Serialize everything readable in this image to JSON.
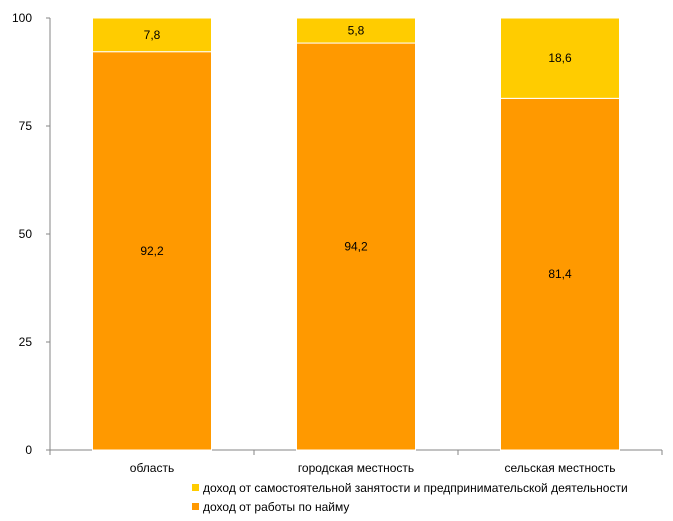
{
  "chart_data": {
    "type": "bar",
    "stacked": true,
    "categories": [
      "область",
      "городская местность",
      "сельская местность"
    ],
    "series": [
      {
        "name": "доход от работы по найму",
        "values": [
          92.2,
          94.2,
          81.4
        ],
        "labels": [
          "92,2",
          "94,2",
          "81,4"
        ],
        "color": "#FF9900"
      },
      {
        "name": "доход от самостоятельной занятости и предпринимательской деятельности",
        "values": [
          7.8,
          5.8,
          18.6
        ],
        "labels": [
          "7,8",
          "5,8",
          "18,6"
        ],
        "color": "#FFCC00"
      }
    ],
    "ylim": [
      0,
      100
    ],
    "yticks": [
      "0",
      "25",
      "50",
      "75",
      "100"
    ],
    "grid": false,
    "legend_position": "bottom"
  }
}
